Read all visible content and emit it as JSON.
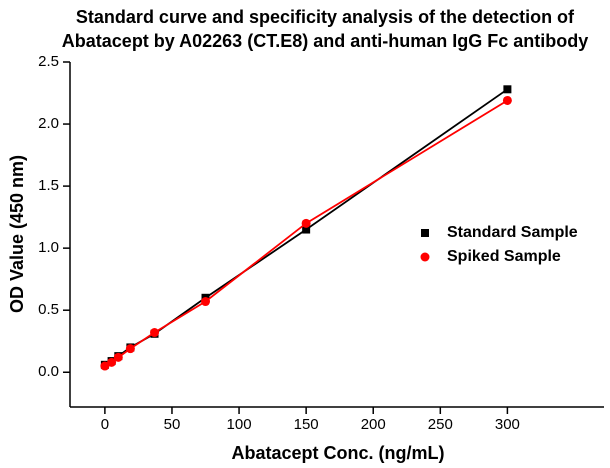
{
  "chart_data": {
    "type": "line",
    "title": [
      "Standard curve and specificity analysis of the detection of",
      "Abatacept by A02263 (CT.E8) and anti-human IgG Fc antibody"
    ],
    "x_label": "Abatacept Conc. (ng/mL)",
    "y_label": "OD Value (450 nm)",
    "x": [
      0,
      5,
      10,
      19,
      37,
      75,
      150,
      300
    ],
    "series": [
      {
        "name": "Standard Sample",
        "color": "#000000",
        "marker": "square",
        "values": [
          0.06,
          0.09,
          0.13,
          0.2,
          0.31,
          0.6,
          1.15,
          2.28
        ]
      },
      {
        "name": "Spiked Sample",
        "color": "#ff0000",
        "marker": "circle",
        "values": [
          0.05,
          0.08,
          0.12,
          0.19,
          0.32,
          0.57,
          1.2,
          2.19
        ]
      }
    ],
    "xlim": [
      -26,
      372
    ],
    "ylim": [
      -0.28,
      2.5
    ],
    "xticks": [
      0,
      50,
      100,
      150,
      200,
      250,
      300
    ],
    "yticks": [
      {
        "value": 0,
        "label": "0.0"
      },
      0.5,
      {
        "value": 1,
        "label": "1.0"
      },
      1.5,
      {
        "value": 2,
        "label": "2.0"
      },
      2.5
    ],
    "grid": false,
    "legend": "right"
  }
}
